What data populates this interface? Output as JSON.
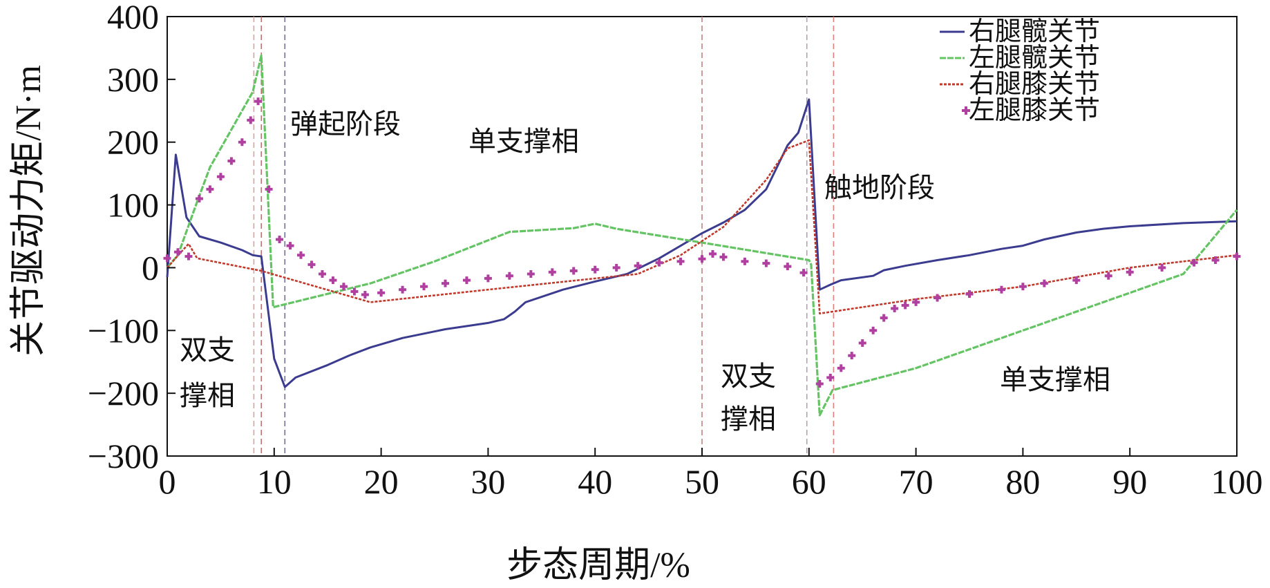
{
  "chart_data": {
    "type": "line",
    "xlabel": "步态周期/%",
    "ylabel": "关节驱动力矩/N·m",
    "xlim": [
      0,
      100
    ],
    "ylim": [
      -300,
      400
    ],
    "xticks": [
      0,
      10,
      20,
      30,
      40,
      50,
      60,
      70,
      80,
      90,
      100
    ],
    "yticks": [
      -300,
      -200,
      -100,
      0,
      100,
      200,
      300,
      400
    ],
    "grid": false,
    "legend_position": "top-right",
    "annotations": [
      "弹起阶段",
      "单支撑相",
      "触地阶段",
      "双支",
      "撑相",
      "双支",
      "撑相",
      "单支撑相"
    ],
    "phase_markers_x": [
      8.1,
      8.8,
      11,
      50,
      59.8,
      62.3
    ],
    "series": [
      {
        "name": "右腿髋关节",
        "color": "#3b3b8f",
        "style": "solid",
        "x": [
          0,
          0.8,
          1.8,
          3,
          5,
          7,
          8,
          8.8,
          10,
          11,
          12,
          15,
          17,
          19,
          22,
          26,
          30,
          31.5,
          32.5,
          33.5,
          37,
          40,
          43,
          46,
          50,
          52,
          54,
          56,
          57,
          58,
          59,
          60,
          61,
          62,
          63,
          66,
          67,
          69,
          72,
          75,
          78,
          80,
          82,
          85,
          87.5,
          90,
          95,
          100
        ],
        "y": [
          -15,
          180,
          80,
          50,
          40,
          28,
          20,
          18,
          -145,
          -190,
          -175,
          -155,
          -140,
          -127,
          -112,
          -98,
          -88,
          -82,
          -70,
          -55,
          -35,
          -22,
          -10,
          15,
          55,
          72,
          92,
          125,
          160,
          195,
          215,
          268,
          -35,
          -27,
          -20,
          -13,
          -4,
          3,
          12,
          20,
          30,
          35,
          45,
          56,
          62,
          66,
          71,
          74
        ]
      },
      {
        "name": "左腿髋关节",
        "color": "#64c464",
        "style": "dashed",
        "x": [
          0,
          1,
          2.8,
          4,
          6,
          8,
          8.8,
          9.9,
          19,
          25,
          32,
          35,
          38,
          40,
          42,
          50,
          60,
          60.2,
          61,
          62.2,
          70,
          80,
          90,
          95,
          100
        ],
        "y": [
          0,
          20,
          105,
          160,
          220,
          280,
          338,
          -63,
          -25,
          10,
          57,
          60,
          63,
          70,
          62,
          40,
          12,
          5,
          -235,
          -195,
          -160,
          -100,
          -40,
          -10,
          92
        ]
      },
      {
        "name": "右腿膝关节",
        "color": "#c0392b",
        "style": "dotted",
        "x": [
          0,
          1.3,
          2,
          2.8,
          8.8,
          19,
          30,
          44,
          48,
          52,
          56,
          58,
          60,
          61,
          70,
          80,
          90,
          100
        ],
        "y": [
          0,
          25,
          38,
          15,
          -5,
          -55,
          -35,
          -10,
          20,
          65,
          140,
          190,
          203,
          -73,
          -50,
          -30,
          0,
          20
        ]
      },
      {
        "name": "左腿膝关节",
        "color": "#b040a0",
        "style": "marker",
        "x": [
          0,
          1,
          2,
          3,
          4,
          5,
          6,
          7,
          7.8,
          8.5,
          9.5,
          10.5,
          11.5,
          12.5,
          13.5,
          14.5,
          15.5,
          16.5,
          17.5,
          18.5,
          20,
          22,
          24,
          26,
          28,
          30,
          32,
          34,
          36,
          38,
          40,
          42,
          44,
          46,
          48,
          50,
          51,
          52,
          54,
          56,
          58,
          59.5,
          61,
          62,
          63,
          64,
          65,
          66,
          67,
          68,
          69,
          70,
          72,
          75,
          78,
          80,
          82,
          85,
          88,
          90,
          93,
          96,
          98,
          100
        ],
        "y": [
          15,
          25,
          18,
          110,
          125,
          145,
          170,
          200,
          235,
          265,
          125,
          45,
          35,
          20,
          5,
          -10,
          -20,
          -30,
          -38,
          -43,
          -40,
          -35,
          -30,
          -25,
          -20,
          -17,
          -13,
          -10,
          -7,
          -5,
          -3,
          0,
          3,
          8,
          10,
          14,
          22,
          17,
          10,
          7,
          2,
          -8,
          -185,
          -175,
          -160,
          -140,
          -120,
          -100,
          -80,
          -65,
          -60,
          -55,
          -48,
          -42,
          -35,
          -30,
          -25,
          -20,
          -13,
          -7,
          0,
          8,
          12,
          18
        ]
      }
    ]
  }
}
